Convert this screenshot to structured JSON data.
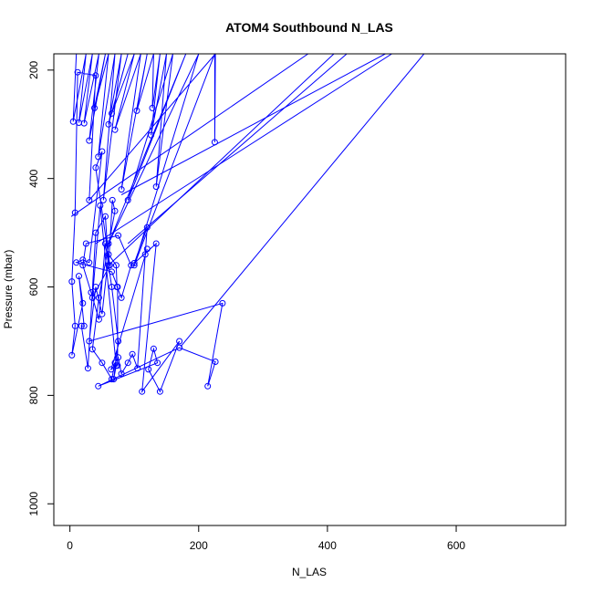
{
  "chart_data": {
    "type": "line",
    "title": "ATOM4 Southbound N_LAS",
    "xlabel": "N_LAS",
    "ylabel": "Pressure (mbar)",
    "xlim": [
      -25,
      770
    ],
    "ylim": [
      1040,
      170
    ],
    "y_reversed": true,
    "x_ticks": [
      0,
      200,
      400,
      600
    ],
    "y_ticks": [
      200,
      400,
      600,
      800,
      1000
    ],
    "grid": false,
    "series": [
      {
        "color": "#0000ff",
        "points": [
          [
            10,
            170
          ],
          [
            5,
            295
          ],
          [
            25,
            170
          ],
          [
            14,
            297
          ],
          [
            35,
            170
          ],
          [
            22,
            298
          ],
          [
            45,
            170
          ],
          [
            30,
            330
          ],
          [
            55,
            170
          ],
          [
            38,
            270
          ],
          [
            60,
            170
          ],
          [
            44,
            360
          ],
          [
            70,
            170
          ],
          [
            52,
            440
          ],
          [
            80,
            170
          ],
          [
            60,
            300
          ],
          [
            90,
            170
          ],
          [
            65,
            280
          ],
          [
            100,
            170
          ],
          [
            70,
            310
          ],
          [
            110,
            170
          ],
          [
            80,
            420
          ],
          [
            120,
            170
          ],
          [
            104,
            275
          ],
          [
            130,
            170
          ],
          [
            128,
            270
          ],
          [
            140,
            170
          ],
          [
            126,
            320
          ],
          [
            150,
            170
          ],
          [
            134,
            415
          ],
          [
            160,
            170
          ],
          [
            90,
            440
          ],
          [
            180,
            170
          ],
          [
            60,
            520
          ],
          [
            200,
            170
          ],
          [
            100,
            560
          ],
          [
            225,
            170
          ],
          [
            225,
            333
          ],
          [
            226,
            170
          ],
          [
            30,
            440
          ],
          [
            40,
            210
          ],
          [
            12,
            204
          ],
          [
            8,
            463
          ],
          [
            3,
            590
          ],
          [
            8,
            672
          ],
          [
            3,
            726
          ],
          [
            20,
            630
          ],
          [
            14,
            580
          ],
          [
            22,
            672
          ],
          [
            18,
            672
          ],
          [
            28,
            750
          ],
          [
            40,
            500
          ],
          [
            55,
            470
          ],
          [
            60,
            560
          ],
          [
            66,
            440
          ],
          [
            70,
            460
          ],
          [
            45,
            620
          ],
          [
            35,
            715
          ],
          [
            50,
            740
          ],
          [
            65,
            770
          ],
          [
            70,
            740
          ],
          [
            75,
            730
          ],
          [
            80,
            760
          ],
          [
            90,
            740
          ],
          [
            97,
            724
          ],
          [
            105,
            750
          ],
          [
            117,
            540
          ],
          [
            120,
            490
          ],
          [
            100,
            556
          ],
          [
            134,
            520
          ],
          [
            112,
            793
          ],
          [
            170,
            700
          ],
          [
            140,
            793
          ],
          [
            122,
            752
          ],
          [
            130,
            714
          ],
          [
            136,
            740
          ],
          [
            44,
            783
          ],
          [
            170,
            712
          ],
          [
            226,
            738
          ],
          [
            214,
            783
          ],
          [
            237,
            630
          ],
          [
            30,
            700
          ],
          [
            40,
            600
          ],
          [
            50,
            650
          ],
          [
            60,
            540
          ],
          [
            72,
            560
          ],
          [
            73,
            600
          ],
          [
            80,
            620
          ],
          [
            95,
            560
          ],
          [
            75,
            505
          ],
          [
            25,
            520
          ],
          [
            20,
            560
          ],
          [
            33,
            610
          ],
          [
            45,
            660
          ],
          [
            55,
            520
          ],
          [
            65,
            600
          ],
          [
            75,
            700
          ],
          [
            68,
            770
          ],
          [
            72,
            745
          ],
          [
            47,
            450
          ],
          [
            35,
            620
          ],
          [
            62,
            560
          ],
          [
            40,
            380
          ],
          [
            50,
            350
          ],
          [
            30,
            555
          ],
          [
            20,
            550
          ],
          [
            10,
            555
          ],
          [
            65,
            572
          ],
          [
            74,
            600
          ],
          [
            74,
            745
          ],
          [
            64,
            752
          ],
          [
            120,
            530
          ]
        ]
      }
    ],
    "long_lines": [
      [
        [
          2,
          470
        ],
        [
          370,
          170
        ]
      ],
      [
        [
          80,
          430
        ],
        [
          490,
          170
        ]
      ],
      [
        [
          60,
          560
        ],
        [
          410,
          170
        ]
      ],
      [
        [
          172,
          710
        ],
        [
          550,
          170
        ]
      ],
      [
        [
          40,
          520
        ],
        [
          500,
          170
        ]
      ],
      [
        [
          90,
          520
        ],
        [
          430,
          170
        ]
      ]
    ]
  }
}
